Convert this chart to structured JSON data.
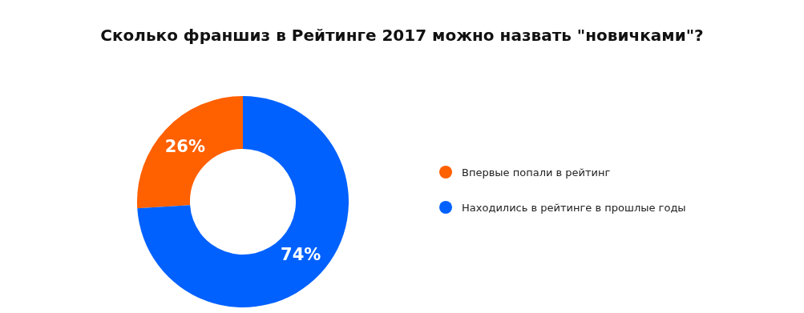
{
  "chart_data": {
    "type": "donut",
    "title": "Сколько франшиз в Рейтинге 2017 можно назвать \"новичками\"?",
    "categories": [
      "Впервые попали в рейтинг",
      "Находились в рейтинге в прошлые годы"
    ],
    "values": [
      26,
      74
    ],
    "colors": [
      "#ff6000",
      "#0061ff"
    ],
    "value_labels": [
      "26%",
      "74%"
    ],
    "legend": "right"
  }
}
